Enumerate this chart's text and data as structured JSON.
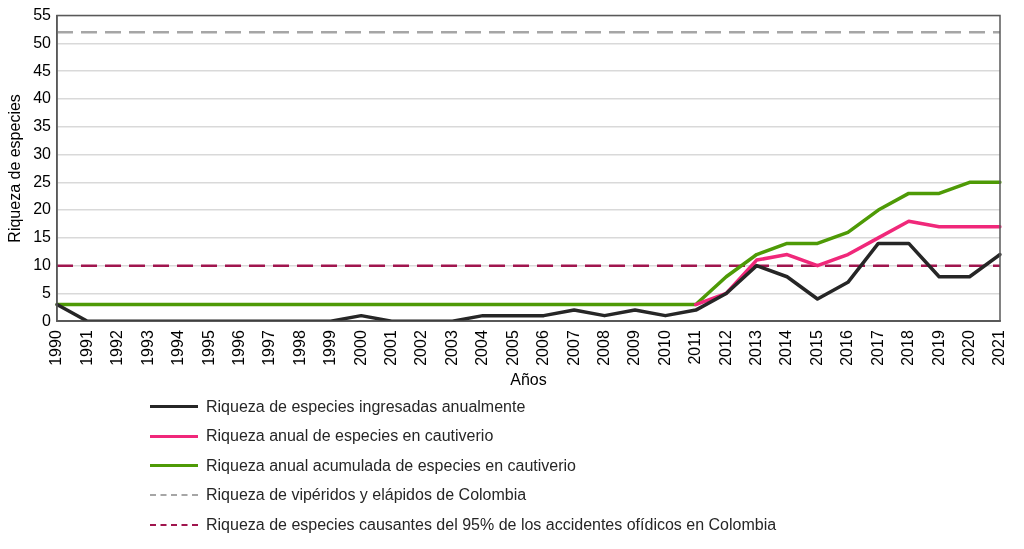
{
  "chart_data": {
    "type": "line",
    "xlabel": "Años",
    "ylabel": "Riqueza de especies",
    "categories": [
      "1990",
      "1991",
      "1992",
      "1993",
      "1994",
      "1995",
      "1996",
      "1997",
      "1998",
      "1999",
      "2000",
      "2001",
      "2002",
      "2003",
      "2004",
      "2005",
      "2006",
      "2007",
      "2008",
      "2009",
      "2010",
      "2011",
      "2012",
      "2013",
      "2014",
      "2015",
      "2016",
      "2017",
      "2018",
      "2019",
      "2020",
      "2021"
    ],
    "series": [
      {
        "name": "Riqueza de especies ingresadas anualmente",
        "color": "#262626",
        "values": [
          3,
          0,
          0,
          0,
          0,
          0,
          0,
          0,
          0,
          0,
          1,
          0,
          0,
          0,
          1,
          1,
          1,
          2,
          1,
          2,
          1,
          2,
          5,
          10,
          8,
          4,
          7,
          14,
          14,
          8,
          8,
          12
        ]
      },
      {
        "name": "Riqueza anual de especies en cautiverio",
        "color": "#f0287a",
        "values": [
          null,
          null,
          null,
          null,
          null,
          null,
          null,
          null,
          null,
          null,
          null,
          null,
          null,
          null,
          null,
          null,
          null,
          null,
          null,
          null,
          null,
          3,
          5,
          11,
          12,
          10,
          12,
          15,
          18,
          17,
          17,
          17
        ]
      },
      {
        "name": "Riqueza anual acumulada de especies en cautiverio",
        "color": "#4e9a06",
        "values": [
          3,
          3,
          3,
          3,
          3,
          3,
          3,
          3,
          3,
          3,
          3,
          3,
          3,
          3,
          3,
          3,
          3,
          3,
          3,
          3,
          3,
          3,
          8,
          12,
          14,
          14,
          16,
          20,
          23,
          23,
          25,
          25
        ]
      }
    ],
    "ref_lines": [
      {
        "axis": "y",
        "value": 52,
        "label": "Riqueza de vipéridos y elápidos de Colombia",
        "color": "#a6a6a6",
        "line_style": "dashed"
      },
      {
        "axis": "y",
        "value": 10,
        "label": "Riqueza de especies causantes del 95% de los accidentes ofídicos en Colombia",
        "color": "#a0154e",
        "line_style": "dashed"
      }
    ],
    "ylim": [
      0,
      55
    ],
    "yticks": [
      0,
      5,
      10,
      15,
      20,
      25,
      30,
      35,
      40,
      45,
      50,
      55
    ],
    "grid": "y",
    "legend": "bottom",
    "marker": "none",
    "line_style": "solid"
  }
}
